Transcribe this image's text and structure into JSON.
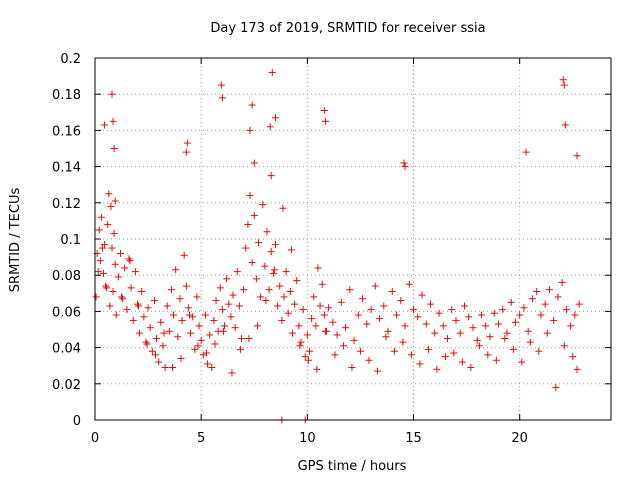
{
  "chart_data": {
    "type": "scatter",
    "title": "Day 173 of 2019, SRMTID for receiver ssia",
    "xlabel": "GPS time / hours",
    "ylabel": "SRMTID / TECUs",
    "xlim": [
      0,
      24.3
    ],
    "ylim": [
      0,
      0.2
    ],
    "xticks": [
      0,
      5,
      10,
      15,
      20
    ],
    "xtick_labels": [
      "0",
      "5",
      "10",
      "15",
      "20"
    ],
    "yticks": [
      0,
      0.02,
      0.04,
      0.06,
      0.08,
      0.1,
      0.12,
      0.14,
      0.16,
      0.18,
      0.2
    ],
    "ytick_labels": [
      "0",
      "0.02",
      "0.04",
      "0.06",
      "0.08",
      "0.1",
      "0.12",
      "0.14",
      "0.16",
      "0.18",
      "0.2"
    ],
    "grid": true,
    "marker": "+",
    "color": "#e01010",
    "series": [
      {
        "x": [
          0.05,
          0.1,
          0.2,
          0.25,
          0.3,
          0.4,
          0.45,
          0.5,
          0.6,
          0.65,
          0.7,
          0.75,
          0.8,
          0.85,
          0.9,
          0.95,
          1.0,
          1.1,
          1.2,
          1.3,
          1.4,
          1.5,
          1.6,
          1.7,
          1.8,
          1.9,
          2.0,
          2.1,
          2.2,
          2.3,
          2.4,
          2.5,
          2.6,
          2.7,
          2.8,
          2.9,
          3.0,
          3.1,
          3.2,
          3.3,
          3.4,
          3.5,
          3.6,
          3.7,
          3.8,
          3.9,
          4.0,
          4.1,
          4.2,
          4.3,
          4.4,
          4.5,
          4.6,
          4.7,
          4.8,
          4.9,
          5.0,
          5.1,
          5.2,
          5.3,
          5.4,
          5.5,
          5.6,
          5.7,
          5.8,
          5.9,
          6.0,
          6.1,
          6.2,
          6.3,
          6.4,
          6.5,
          6.6,
          6.7,
          6.8,
          6.9,
          7.0,
          7.1,
          7.2,
          7.3,
          7.4,
          7.5,
          7.6,
          7.7,
          7.8,
          7.9,
          8.0,
          8.1,
          8.2,
          8.3,
          8.4,
          8.5,
          8.6,
          8.7,
          8.8,
          8.9,
          9.0,
          9.1,
          9.2,
          9.3,
          9.4,
          9.5,
          9.6,
          9.7,
          9.8,
          9.9,
          10.0,
          10.1,
          10.2,
          10.3,
          10.4,
          10.5,
          10.6,
          10.7,
          10.8,
          10.9,
          11.0,
          11.2,
          11.4,
          11.6,
          11.8,
          12.0,
          12.2,
          12.4,
          12.6,
          12.8,
          13.0,
          13.2,
          13.4,
          13.6,
          13.8,
          14.0,
          14.2,
          14.4,
          14.6,
          14.8,
          15.0,
          15.2,
          15.4,
          15.6,
          15.8,
          16.0,
          16.2,
          16.4,
          16.6,
          16.8,
          17.0,
          17.2,
          17.4,
          17.6,
          17.8,
          18.0,
          18.2,
          18.4,
          18.6,
          18.8,
          19.0,
          19.2,
          19.4,
          19.6,
          19.8,
          20.0,
          20.2,
          20.4,
          20.6,
          20.8,
          21.0,
          21.2,
          21.4,
          21.6,
          21.8,
          22.0,
          22.2,
          22.4,
          22.6,
          22.8,
          0.15,
          0.35,
          0.55,
          0.95,
          1.25,
          1.65,
          2.05,
          2.45,
          2.85,
          3.25,
          3.65,
          4.05,
          4.45,
          4.85,
          5.25,
          5.65,
          6.05,
          6.45,
          6.85,
          7.25,
          7.65,
          8.05,
          8.45,
          8.85,
          9.25,
          9.65,
          10.05,
          10.45,
          10.85,
          11.3,
          11.7,
          12.1,
          12.5,
          12.9,
          13.3,
          13.7,
          14.1,
          14.5,
          14.9,
          15.3,
          15.7,
          16.1,
          16.5,
          16.9,
          17.3,
          17.7,
          18.1,
          18.5,
          18.9,
          19.3,
          19.7,
          20.1,
          20.5,
          20.9,
          21.3,
          21.7,
          22.1,
          22.5,
          22.7,
          0.45,
          0.8,
          0.85,
          0.9,
          4.3,
          4.35,
          5.95,
          6.0,
          7.3,
          7.4,
          7.5,
          8.25,
          8.3,
          8.35,
          8.5,
          10.8,
          10.85,
          14.55,
          14.6,
          20.3,
          22.05,
          22.1,
          22.15,
          22.7,
          8.8,
          9.9
        ],
        "y": [
          0.068,
          0.092,
          0.105,
          0.088,
          0.112,
          0.081,
          0.097,
          0.074,
          0.108,
          0.125,
          0.063,
          0.118,
          0.095,
          0.071,
          0.103,
          0.086,
          0.058,
          0.079,
          0.092,
          0.067,
          0.084,
          0.061,
          0.089,
          0.073,
          0.055,
          0.082,
          0.064,
          0.048,
          0.071,
          0.057,
          0.043,
          0.062,
          0.051,
          0.038,
          0.066,
          0.045,
          0.032,
          0.054,
          0.041,
          0.029,
          0.063,
          0.049,
          0.072,
          0.058,
          0.083,
          0.046,
          0.067,
          0.055,
          0.091,
          0.074,
          0.062,
          0.048,
          0.057,
          0.039,
          0.068,
          0.052,
          0.044,
          0.036,
          0.058,
          0.031,
          0.047,
          0.029,
          0.055,
          0.066,
          0.049,
          0.073,
          0.061,
          0.052,
          0.078,
          0.064,
          0.057,
          0.069,
          0.051,
          0.082,
          0.063,
          0.045,
          0.072,
          0.095,
          0.108,
          0.124,
          0.087,
          0.113,
          0.078,
          0.098,
          0.068,
          0.119,
          0.085,
          0.104,
          0.072,
          0.093,
          0.081,
          0.097,
          0.063,
          0.074,
          0.055,
          0.068,
          0.082,
          0.059,
          0.071,
          0.048,
          0.064,
          0.077,
          0.052,
          0.043,
          0.061,
          0.035,
          0.047,
          0.038,
          0.056,
          0.068,
          0.052,
          0.084,
          0.063,
          0.075,
          0.058,
          0.049,
          0.062,
          0.054,
          0.047,
          0.065,
          0.051,
          0.072,
          0.044,
          0.058,
          0.067,
          0.053,
          0.061,
          0.074,
          0.056,
          0.063,
          0.049,
          0.071,
          0.058,
          0.066,
          0.052,
          0.075,
          0.061,
          0.057,
          0.069,
          0.053,
          0.064,
          0.048,
          0.059,
          0.052,
          0.045,
          0.061,
          0.055,
          0.048,
          0.063,
          0.057,
          0.051,
          0.044,
          0.058,
          0.052,
          0.046,
          0.059,
          0.053,
          0.061,
          0.048,
          0.065,
          0.054,
          0.058,
          0.062,
          0.049,
          0.067,
          0.071,
          0.058,
          0.064,
          0.072,
          0.055,
          0.068,
          0.076,
          0.061,
          0.052,
          0.058,
          0.064,
          0.082,
          0.095,
          0.073,
          0.121,
          0.068,
          0.088,
          0.063,
          0.042,
          0.036,
          0.048,
          0.029,
          0.034,
          0.058,
          0.041,
          0.037,
          0.042,
          0.049,
          0.026,
          0.039,
          0.045,
          0.052,
          0.066,
          0.083,
          0.117,
          0.094,
          0.041,
          0.033,
          0.028,
          0.049,
          0.036,
          0.041,
          0.029,
          0.038,
          0.033,
          0.027,
          0.046,
          0.038,
          0.043,
          0.036,
          0.031,
          0.039,
          0.028,
          0.035,
          0.037,
          0.032,
          0.029,
          0.041,
          0.036,
          0.033,
          0.045,
          0.039,
          0.032,
          0.043,
          0.038,
          0.048,
          0.018,
          0.041,
          0.035,
          0.028,
          0.163,
          0.18,
          0.165,
          0.15,
          0.148,
          0.153,
          0.185,
          0.178,
          0.16,
          0.174,
          0.142,
          0.162,
          0.135,
          0.192,
          0.167,
          0.171,
          0.165,
          0.142,
          0.14,
          0.148,
          0.188,
          0.185,
          0.163,
          0.146,
          0.0,
          0.0
        ]
      }
    ]
  }
}
